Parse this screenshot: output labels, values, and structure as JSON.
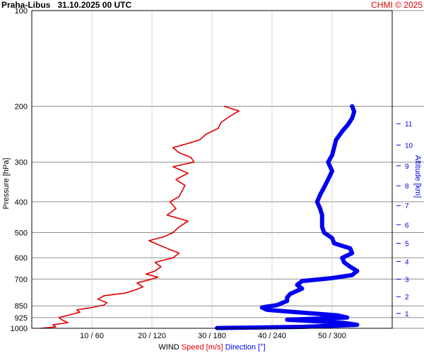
{
  "header": {
    "station": "Praha-Libus",
    "datetime": "31.10.2025 00 UTC",
    "credit": "CHMI © 2025"
  },
  "chart_data": {
    "type": "line",
    "title": "Praha-Libus   31.10.2025 00 UTC",
    "y_axis": {
      "label": "Pressure [hPa]",
      "scale": "log",
      "range": [
        100,
        1000
      ],
      "ticks": [
        100,
        200,
        300,
        400,
        500,
        600,
        700,
        850,
        925,
        1000
      ]
    },
    "y2_axis": {
      "label": "Altitude [km]",
      "ticks": [
        1,
        2,
        3,
        4,
        5,
        6,
        7,
        8,
        9,
        10,
        11
      ],
      "tick_pressure_hpa": [
        898,
        795,
        701,
        616,
        540,
        472,
        411,
        356,
        308,
        265,
        227
      ]
    },
    "x_axis": {
      "title": "WIND",
      "speed_label": "Speed [m/s]",
      "direction_label": "Direction [°]",
      "speed_range": [
        0,
        60
      ],
      "direction_range": [
        0,
        360
      ],
      "tick_labels": [
        "10 / 60",
        "20 / 120",
        "30 / 180",
        "40 / 240",
        "50 / 300"
      ]
    },
    "series": [
      {
        "name": "Speed [m/s]",
        "color": "#e00000",
        "unit": "m/s",
        "points": [
          [
            1000,
            1.5
          ],
          [
            990,
            4
          ],
          [
            975,
            3.5
          ],
          [
            960,
            6
          ],
          [
            940,
            5
          ],
          [
            925,
            4.5
          ],
          [
            910,
            6
          ],
          [
            890,
            8
          ],
          [
            875,
            7.5
          ],
          [
            860,
            10
          ],
          [
            845,
            12
          ],
          [
            830,
            12.5
          ],
          [
            810,
            11
          ],
          [
            790,
            12
          ],
          [
            775,
            15.5
          ],
          [
            760,
            17
          ],
          [
            740,
            18.5
          ],
          [
            720,
            17.5
          ],
          [
            700,
            20
          ],
          [
            690,
            21
          ],
          [
            675,
            19
          ],
          [
            660,
            20.5
          ],
          [
            640,
            21.5
          ],
          [
            620,
            20.5
          ],
          [
            600,
            23.5
          ],
          [
            580,
            24.5
          ],
          [
            560,
            22.5
          ],
          [
            545,
            21
          ],
          [
            530,
            19.5
          ],
          [
            515,
            22
          ],
          [
            500,
            23.5
          ],
          [
            480,
            24.5
          ],
          [
            460,
            26
          ],
          [
            440,
            22.5
          ],
          [
            420,
            24
          ],
          [
            400,
            23
          ],
          [
            385,
            24.5
          ],
          [
            370,
            25
          ],
          [
            355,
            25.5
          ],
          [
            340,
            24
          ],
          [
            325,
            26
          ],
          [
            310,
            23.5
          ],
          [
            300,
            27
          ],
          [
            290,
            26.5
          ],
          [
            280,
            24.5
          ],
          [
            270,
            23.5
          ],
          [
            262,
            26
          ],
          [
            255,
            28
          ],
          [
            245,
            29
          ],
          [
            235,
            31
          ],
          [
            225,
            31.5
          ],
          [
            215,
            33
          ],
          [
            207,
            34.5
          ],
          [
            200,
            32
          ]
        ]
      },
      {
        "name": "Direction [°]",
        "color": "#0000ee",
        "unit": "degrees",
        "points": [
          [
            998,
            185
          ],
          [
            990,
            270
          ],
          [
            975,
            325
          ],
          [
            960,
            310
          ],
          [
            940,
            255
          ],
          [
            925,
            315
          ],
          [
            910,
            305
          ],
          [
            890,
            265
          ],
          [
            875,
            235
          ],
          [
            860,
            230
          ],
          [
            845,
            245
          ],
          [
            820,
            255
          ],
          [
            800,
            255
          ],
          [
            780,
            258
          ],
          [
            750,
            270
          ],
          [
            730,
            265
          ],
          [
            710,
            270
          ],
          [
            695,
            300
          ],
          [
            680,
            320
          ],
          [
            660,
            325
          ],
          [
            640,
            318
          ],
          [
            620,
            312
          ],
          [
            600,
            310
          ],
          [
            580,
            320
          ],
          [
            560,
            318
          ],
          [
            540,
            302
          ],
          [
            520,
            300
          ],
          [
            500,
            292
          ],
          [
            480,
            290
          ],
          [
            460,
            290
          ],
          [
            440,
            290
          ],
          [
            420,
            288
          ],
          [
            400,
            285
          ],
          [
            380,
            288
          ],
          [
            360,
            292
          ],
          [
            340,
            296
          ],
          [
            320,
            300
          ],
          [
            300,
            296
          ],
          [
            285,
            300
          ],
          [
            270,
            302
          ],
          [
            255,
            304
          ],
          [
            240,
            310
          ],
          [
            228,
            316
          ],
          [
            218,
            320
          ],
          [
            208,
            322
          ],
          [
            200,
            320
          ]
        ]
      }
    ],
    "grid": true
  }
}
